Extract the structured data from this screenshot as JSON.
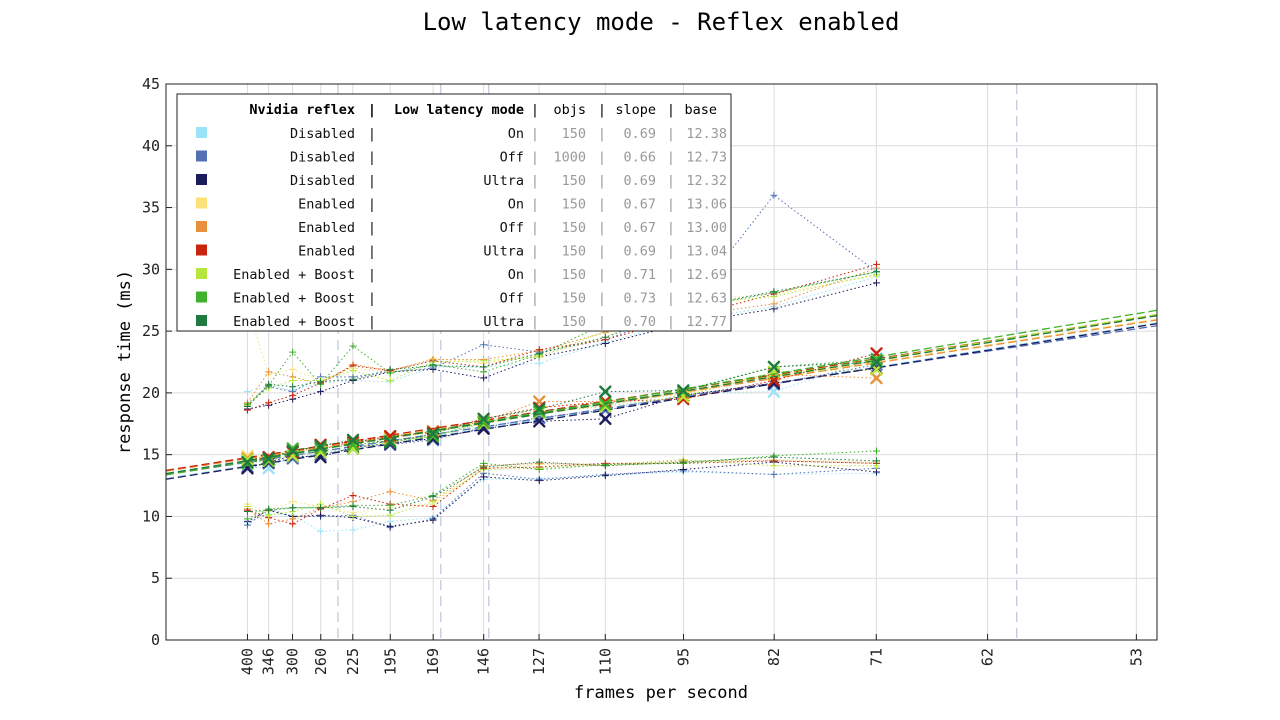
{
  "chart_data": {
    "type": "line",
    "title": "Low latency mode - Reflex enabled",
    "xlabel": "frames per second",
    "ylabel": "response time (ms)",
    "ylim": [
      0,
      45
    ],
    "y_ticks": [
      0,
      5,
      10,
      15,
      20,
      25,
      30,
      35,
      40,
      45
    ],
    "x_ticks": [
      "400",
      "346",
      "300",
      "260",
      "225",
      "195",
      "169",
      "146",
      "127",
      "110",
      "95",
      "82",
      "71",
      "62",
      "53"
    ],
    "x_tick_frametimes_ms": [
      2.5,
      2.89,
      3.33,
      3.85,
      4.44,
      5.13,
      5.92,
      6.85,
      7.87,
      9.09,
      10.53,
      12.2,
      14.08,
      16.13,
      18.87
    ],
    "xlim_frametime_ms": [
      1.0,
      19.25
    ],
    "grid": true,
    "legend_position": "top-left",
    "vertical_dashed_lines_fps": [
      240,
      165,
      144,
      60
    ],
    "legend_header": {
      "c1": "Nvidia reflex",
      "c2": "Low latency mode",
      "c3": "objs",
      "c4": "slope",
      "c5": "base"
    },
    "fps_points": [
      400,
      346,
      300,
      260,
      225,
      195,
      169,
      146,
      127,
      110,
      95,
      82,
      71
    ],
    "series": [
      {
        "reflex": "Disabled",
        "mode": "On",
        "objs": "150",
        "slope": "0.69",
        "base": "12.38",
        "color": "#9be3f9",
        "median": [
          14.0,
          13.9,
          14.9,
          15.4,
          15.5,
          16.2,
          16.5,
          17.7,
          18.4,
          19.0,
          20.0,
          20.1,
          22.8
        ],
        "p95": [
          20.1,
          20.6,
          20.2,
          20.8,
          21.0,
          20.9,
          22.1,
          22.1,
          22.4,
          24.1,
          25.8,
          27.0,
          29.4
        ],
        "p5": [
          9.5,
          10.2,
          10.1,
          8.8,
          8.9,
          9.6,
          9.9,
          13.0,
          13.1,
          13.3,
          13.6,
          13.4,
          13.5
        ]
      },
      {
        "reflex": "Disabled",
        "mode": "Off",
        "objs": "1000",
        "slope": "0.66",
        "base": "12.73",
        "color": "#5470b4",
        "median": [
          14.0,
          14.3,
          14.7,
          15.0,
          15.5,
          15.8,
          16.2,
          17.2,
          18.0,
          18.6,
          19.8,
          20.7,
          22.3
        ],
        "p95": [
          19.0,
          20.5,
          20.1,
          21.3,
          21.3,
          21.7,
          22.0,
          23.9,
          23.3,
          24.3,
          26.6,
          36.0,
          29.8
        ],
        "p5": [
          9.3,
          10.6,
          10.0,
          10.0,
          10.1,
          9.1,
          9.8,
          13.5,
          13.0,
          13.4,
          13.7,
          13.4,
          13.9
        ]
      },
      {
        "reflex": "Disabled",
        "mode": "Ultra",
        "objs": "150",
        "slope": "0.69",
        "base": "12.32",
        "color": "#1c1b5c",
        "median": [
          13.9,
          14.4,
          14.9,
          14.8,
          15.6,
          15.9,
          16.3,
          17.1,
          17.7,
          17.9,
          19.8,
          20.8,
          22.0
        ],
        "p95": [
          18.7,
          19.0,
          19.5,
          20.1,
          21.0,
          21.7,
          21.9,
          21.2,
          22.9,
          24.0,
          25.6,
          26.8,
          28.9
        ],
        "p5": [
          9.6,
          10.5,
          10.0,
          10.1,
          9.9,
          9.2,
          9.7,
          13.2,
          12.9,
          13.3,
          13.8,
          14.4,
          13.6
        ]
      },
      {
        "reflex": "Enabled",
        "mode": "On",
        "objs": "150",
        "slope": "0.67",
        "base": "13.06",
        "color": "#fce07a",
        "median": [
          14.9,
          14.8,
          15.2,
          15.6,
          15.9,
          16.3,
          16.8,
          17.6,
          18.8,
          19.2,
          19.9,
          21.4,
          22.5
        ],
        "p95": [
          27.0,
          21.5,
          21.9,
          21.0,
          22.0,
          21.7,
          22.8,
          22.4,
          23.0,
          24.5,
          27.5,
          28.0,
          29.5
        ],
        "p5": [
          11.0,
          10.4,
          11.2,
          10.8,
          10.3,
          10.7,
          11.0,
          13.9,
          14.2,
          14.1,
          14.4,
          14.6,
          14.4
        ]
      },
      {
        "reflex": "Enabled",
        "mode": "Off",
        "objs": "150",
        "slope": "0.67",
        "base": "13.00",
        "color": "#e8903a",
        "median": [
          14.7,
          14.6,
          15.3,
          15.5,
          16.0,
          16.4,
          16.9,
          17.7,
          19.3,
          19.3,
          20.0,
          21.5,
          21.2
        ],
        "p95": [
          19.2,
          21.7,
          21.3,
          20.7,
          22.3,
          21.8,
          22.7,
          22.7,
          23.4,
          24.9,
          26.2,
          27.2,
          30.1
        ],
        "p5": [
          10.6,
          9.4,
          9.8,
          10.7,
          11.2,
          12.0,
          11.3,
          14.1,
          14.3,
          14.2,
          14.5,
          14.5,
          14.3
        ]
      },
      {
        "reflex": "Enabled",
        "mode": "Ultra",
        "objs": "150",
        "slope": "0.69",
        "base": "13.04",
        "color": "#c8240e",
        "median": [
          14.6,
          14.8,
          15.2,
          15.8,
          16.0,
          16.5,
          16.8,
          17.9,
          18.8,
          19.3,
          19.5,
          21.0,
          23.2
        ],
        "p95": [
          18.6,
          19.2,
          19.8,
          20.8,
          22.2,
          21.8,
          22.6,
          22.1,
          23.5,
          24.3,
          26.1,
          28.0,
          30.4
        ],
        "p5": [
          10.5,
          9.9,
          9.4,
          10.6,
          11.7,
          11.0,
          10.8,
          13.9,
          14.0,
          14.3,
          14.3,
          14.5,
          14.3
        ]
      },
      {
        "reflex": "Enabled + Boost",
        "mode": "On",
        "objs": "150",
        "slope": "0.71",
        "base": "12.69",
        "color": "#b6e63a",
        "median": [
          14.6,
          14.5,
          14.9,
          15.2,
          15.5,
          16.0,
          16.5,
          17.5,
          18.4,
          18.9,
          19.7,
          21.7,
          21.9
        ],
        "p95": [
          19.0,
          20.4,
          21.0,
          21.0,
          21.8,
          21.0,
          22.5,
          22.6,
          22.9,
          25.0,
          27.1,
          27.8,
          29.6
        ],
        "p5": [
          10.8,
          10.1,
          10.4,
          11.0,
          10.0,
          10.1,
          11.2,
          13.8,
          13.9,
          14.2,
          14.6,
          14.1,
          14.1
        ]
      },
      {
        "reflex": "Enabled + Boost",
        "mode": "Off",
        "objs": "150",
        "slope": "0.73",
        "base": "12.63",
        "color": "#3fb12a",
        "median": [
          14.3,
          14.6,
          15.5,
          15.5,
          15.8,
          16.1,
          16.5,
          17.6,
          18.5,
          19.1,
          20.1,
          22.1,
          22.7
        ],
        "p95": [
          19.1,
          20.6,
          23.3,
          20.7,
          23.8,
          21.6,
          22.3,
          21.7,
          23.1,
          25.6,
          26.8,
          28.1,
          29.8
        ],
        "p5": [
          9.8,
          10.6,
          10.7,
          10.7,
          10.9,
          10.9,
          11.7,
          14.3,
          13.8,
          14.2,
          14.3,
          14.9,
          15.3
        ]
      },
      {
        "reflex": "Enabled + Boost",
        "mode": "Ultra",
        "objs": "150",
        "slope": "0.70",
        "base": "12.77",
        "color": "#1f7a3f",
        "median": [
          14.4,
          14.7,
          15.3,
          15.7,
          16.2,
          16.0,
          16.7,
          17.9,
          18.7,
          20.1,
          20.2,
          22.1,
          22.5
        ],
        "p95": [
          18.9,
          20.7,
          20.5,
          20.9,
          21.1,
          21.9,
          22.2,
          22.1,
          23.2,
          24.5,
          26.8,
          28.2,
          29.8
        ],
        "p5": [
          10.4,
          10.5,
          10.7,
          10.7,
          10.8,
          10.5,
          11.6,
          14.0,
          14.4,
          14.1,
          14.4,
          14.8,
          14.5
        ]
      }
    ]
  }
}
